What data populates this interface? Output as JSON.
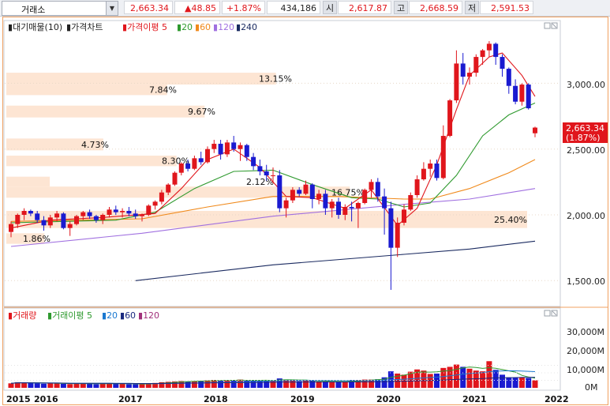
{
  "topbar": {
    "market": "거래소",
    "price": "2,663.34",
    "change": "▲48.85",
    "change_pct": "+1.87%",
    "volume": "434,186",
    "open_label": "시",
    "open": "2,617.87",
    "high_label": "고",
    "high": "2,668.59",
    "low_label": "저",
    "low": "2,591.53"
  },
  "price_panel": {
    "legend": [
      {
        "text": "대기매물(10)",
        "color": "#222222"
      },
      {
        "text": "가격차트",
        "color": "#222222"
      },
      {
        "text": "가격이평 5",
        "color": "#e0161c"
      },
      {
        "text": "20",
        "color": "#2f9a2f"
      },
      {
        "text": "60",
        "color": "#f08a1c"
      },
      {
        "text": "120",
        "color": "#a070e0"
      },
      {
        "text": "240",
        "color": "#1a2a60"
      }
    ],
    "yticks": [
      "3,000.00",
      "2,500.00",
      "2,000.00",
      "1,500.00"
    ],
    "current_price": "2,663.34",
    "current_pct": "(1.87%)",
    "overhang": [
      {
        "label": "13.15%",
        "pct": 13.15,
        "low": 2990,
        "high": 3080
      },
      {
        "label": "7.84%",
        "pct": 7.84,
        "low": 2910,
        "high": 2990
      },
      {
        "label": "9.67%",
        "pct": 9.67,
        "low": 2740,
        "high": 2830
      },
      {
        "label": "4.73%",
        "pct": 4.73,
        "low": 2490,
        "high": 2580
      },
      {
        "label": "8.30%",
        "pct": 8.3,
        "low": 2370,
        "high": 2450
      },
      {
        "label": "2.12%",
        "pct": 2.12,
        "low": 2215,
        "high": 2290
      },
      {
        "label": "16.75%",
        "pct": 16.75,
        "low": 2130,
        "high": 2215
      },
      {
        "label": "25.40%",
        "pct": 25.4,
        "low": 1900,
        "high": 2030
      },
      {
        "label": "1.86%",
        "pct": 1.86,
        "low": 1780,
        "high": 1860
      }
    ]
  },
  "volume_panel": {
    "legend": [
      {
        "text": "거래량",
        "color": "#e0161c"
      },
      {
        "text": "거래이평 5",
        "color": "#2f9a2f"
      },
      {
        "text": "20",
        "color": "#1a78d0"
      },
      {
        "text": "60",
        "color": "#1a2a80"
      },
      {
        "text": "120",
        "color": "#a0307a"
      }
    ],
    "yticks": [
      "30,000M",
      "20,000M",
      "10,000M",
      "0M"
    ]
  },
  "xaxis": {
    "labels": [
      "2015",
      "2016",
      "2017",
      "2018",
      "2019",
      "2020",
      "2021",
      "2022"
    ]
  },
  "chart_data": {
    "type": "candlestick",
    "period": "monthly",
    "y_range": [
      1450,
      3350
    ],
    "volume_range_m": [
      0,
      38000
    ],
    "candles": [
      [
        1870,
        1950,
        1830,
        1930,
        6000
      ],
      [
        1930,
        2010,
        1900,
        2000,
        7500
      ],
      [
        2000,
        2050,
        1960,
        2030,
        7000
      ],
      [
        2030,
        2040,
        1990,
        2010,
        6500
      ],
      [
        2010,
        2030,
        1940,
        1960,
        6000
      ],
      [
        1960,
        1990,
        1880,
        1920,
        5500
      ],
      [
        1920,
        2000,
        1900,
        1980,
        6500
      ],
      [
        1980,
        2030,
        1950,
        2010,
        6000
      ],
      [
        2010,
        2020,
        1890,
        1900,
        5500
      ],
      [
        1900,
        1950,
        1840,
        1930,
        5000
      ],
      [
        1930,
        2000,
        1920,
        1990,
        6000
      ],
      [
        1990,
        2030,
        1960,
        2020,
        6000
      ],
      [
        2020,
        2040,
        1970,
        1990,
        5500
      ],
      [
        1990,
        2000,
        1940,
        1960,
        5000
      ],
      [
        1960,
        2010,
        1930,
        2000,
        5500
      ],
      [
        2000,
        2060,
        1980,
        2040,
        6000
      ],
      [
        2040,
        2070,
        2000,
        2020,
        5500
      ],
      [
        2020,
        2050,
        1980,
        2030,
        5500
      ],
      [
        2030,
        2060,
        1990,
        2010,
        5000
      ],
      [
        2010,
        2040,
        1970,
        1990,
        5000
      ],
      [
        1990,
        2010,
        1950,
        2000,
        5000
      ],
      [
        2000,
        2080,
        1990,
        2070,
        6000
      ],
      [
        2070,
        2110,
        2040,
        2100,
        6500
      ],
      [
        2100,
        2190,
        2080,
        2170,
        7500
      ],
      [
        2170,
        2240,
        2150,
        2230,
        8000
      ],
      [
        2230,
        2330,
        2220,
        2320,
        8500
      ],
      [
        2320,
        2400,
        2300,
        2390,
        9000
      ],
      [
        2390,
        2420,
        2330,
        2350,
        8500
      ],
      [
        2350,
        2450,
        2340,
        2430,
        9000
      ],
      [
        2430,
        2480,
        2380,
        2400,
        9500
      ],
      [
        2400,
        2520,
        2390,
        2500,
        10000
      ],
      [
        2500,
        2570,
        2470,
        2540,
        10500
      ],
      [
        2540,
        2570,
        2420,
        2460,
        9500
      ],
      [
        2460,
        2570,
        2440,
        2550,
        10500
      ],
      [
        2550,
        2600,
        2480,
        2500,
        9500
      ],
      [
        2500,
        2550,
        2410,
        2530,
        11000
      ],
      [
        2530,
        2540,
        2410,
        2440,
        9500
      ],
      [
        2440,
        2470,
        2340,
        2370,
        9500
      ],
      [
        2370,
        2420,
        2300,
        2330,
        10500
      ],
      [
        2330,
        2380,
        2260,
        2300,
        10000
      ],
      [
        2300,
        2360,
        2240,
        2300,
        9500
      ],
      [
        2300,
        2340,
        2020,
        2050,
        12500
      ],
      [
        2050,
        2130,
        1980,
        2110,
        11000
      ],
      [
        2110,
        2210,
        2090,
        2190,
        10000
      ],
      [
        2190,
        2210,
        2140,
        2160,
        9000
      ],
      [
        2160,
        2260,
        2150,
        2230,
        9500
      ],
      [
        2230,
        2240,
        2050,
        2120,
        9500
      ],
      [
        2120,
        2190,
        2080,
        2160,
        8500
      ],
      [
        2160,
        2190,
        2000,
        2050,
        8500
      ],
      [
        2050,
        2120,
        1980,
        2100,
        8000
      ],
      [
        2100,
        2130,
        1970,
        2000,
        8000
      ],
      [
        2000,
        2080,
        1960,
        2060,
        8500
      ],
      [
        2060,
        2100,
        1950,
        2050,
        10500
      ],
      [
        2050,
        2100,
        1900,
        2090,
        10500
      ],
      [
        2090,
        2200,
        2080,
        2190,
        11000
      ],
      [
        2190,
        2270,
        2130,
        2250,
        11000
      ],
      [
        2250,
        2280,
        2100,
        2140,
        11500
      ],
      [
        2140,
        2200,
        1850,
        2050,
        14000
      ],
      [
        2050,
        2100,
        1430,
        1750,
        22000
      ],
      [
        1750,
        1980,
        1680,
        1940,
        19000
      ],
      [
        1940,
        2080,
        1920,
        2040,
        17500
      ],
      [
        2040,
        2170,
        2030,
        2150,
        21500
      ],
      [
        2150,
        2300,
        2130,
        2270,
        24500
      ],
      [
        2270,
        2400,
        2260,
        2350,
        23000
      ],
      [
        2350,
        2420,
        2290,
        2390,
        18500
      ],
      [
        2390,
        2420,
        2260,
        2280,
        19000
      ],
      [
        2280,
        2680,
        2270,
        2600,
        26500
      ],
      [
        2600,
        2880,
        2590,
        2870,
        28000
      ],
      [
        2870,
        3250,
        2850,
        3150,
        31000
      ],
      [
        3150,
        3230,
        2990,
        3050,
        28000
      ],
      [
        3050,
        3120,
        2990,
        3080,
        25500
      ],
      [
        3080,
        3220,
        3050,
        3200,
        23000
      ],
      [
        3200,
        3260,
        3140,
        3250,
        22000
      ],
      [
        3250,
        3320,
        3200,
        3300,
        35500
      ],
      [
        3300,
        3310,
        3140,
        3200,
        24000
      ],
      [
        3200,
        3220,
        3050,
        3110,
        17500
      ],
      [
        3110,
        3120,
        2920,
        2980,
        14000
      ],
      [
        2980,
        3030,
        2840,
        2860,
        13500
      ],
      [
        2860,
        3000,
        2830,
        2990,
        14000
      ],
      [
        2990,
        3000,
        2800,
        2810,
        13000
      ],
      [
        2620,
        2670,
        2590,
        2663,
        10000
      ]
    ],
    "ma_5": [
      [
        0,
        1900
      ],
      [
        6,
        1960
      ],
      [
        14,
        1980
      ],
      [
        22,
        2010
      ],
      [
        26,
        2200
      ],
      [
        30,
        2420
      ],
      [
        34,
        2500
      ],
      [
        38,
        2360
      ],
      [
        42,
        2140
      ],
      [
        46,
        2130
      ],
      [
        51,
        2050
      ],
      [
        55,
        2190
      ],
      [
        59,
        1920
      ],
      [
        62,
        2050
      ],
      [
        65,
        2380
      ],
      [
        68,
        2800
      ],
      [
        70,
        3060
      ],
      [
        73,
        3200
      ],
      [
        75,
        3230
      ],
      [
        78,
        3060
      ],
      [
        80,
        2900
      ]
    ],
    "ma_20": [
      [
        0,
        1940
      ],
      [
        8,
        1950
      ],
      [
        16,
        1960
      ],
      [
        22,
        2020
      ],
      [
        28,
        2200
      ],
      [
        34,
        2330
      ],
      [
        40,
        2340
      ],
      [
        46,
        2230
      ],
      [
        52,
        2130
      ],
      [
        56,
        2120
      ],
      [
        60,
        2060
      ],
      [
        64,
        2090
      ],
      [
        68,
        2300
      ],
      [
        72,
        2600
      ],
      [
        76,
        2760
      ],
      [
        80,
        2850
      ]
    ],
    "ma_60": [
      [
        0,
        1950
      ],
      [
        10,
        1960
      ],
      [
        20,
        1970
      ],
      [
        30,
        2060
      ],
      [
        40,
        2140
      ],
      [
        50,
        2140
      ],
      [
        60,
        2120
      ],
      [
        64,
        2120
      ],
      [
        70,
        2200
      ],
      [
        76,
        2320
      ],
      [
        80,
        2420
      ]
    ],
    "ma_120": [
      [
        0,
        1760
      ],
      [
        20,
        1860
      ],
      [
        40,
        1990
      ],
      [
        60,
        2080
      ],
      [
        70,
        2120
      ],
      [
        80,
        2200
      ]
    ],
    "ma_240": [
      [
        19,
        1500
      ],
      [
        40,
        1620
      ],
      [
        60,
        1700
      ],
      [
        70,
        1740
      ],
      [
        80,
        1800
      ]
    ]
  }
}
